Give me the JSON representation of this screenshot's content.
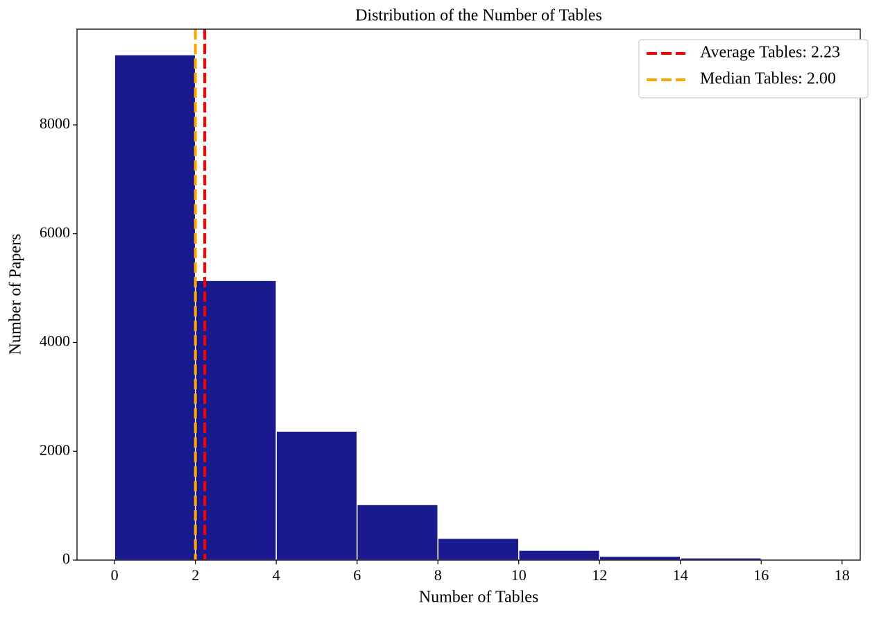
{
  "chart_data": {
    "type": "histogram",
    "title": "Distribution of the Number of Tables",
    "x_label": "Number of Tables",
    "y_label": "Number of Papers",
    "bins": [
      0,
      2,
      4,
      6,
      8,
      10,
      12,
      14,
      16,
      18
    ],
    "counts": [
      9290,
      5140,
      2370,
      1020,
      400,
      180,
      70,
      40,
      15
    ],
    "color": "#1a1a8f",
    "edge_color": "#ffffff",
    "xlim": [
      -0.93,
      18.45
    ],
    "ylim": [
      0,
      9760
    ],
    "xticks": [
      0,
      2,
      4,
      6,
      8,
      10,
      12,
      14,
      16,
      18
    ],
    "yticks": [
      0,
      2000,
      4000,
      6000,
      8000
    ],
    "vlines": [
      {
        "name": "Average Tables: 2.23",
        "value": 2.23,
        "color": "#ff0000"
      },
      {
        "name": "Median Tables: 2.00",
        "value": 2.0,
        "color": "#ffa500"
      }
    ],
    "legend": "upper right",
    "grid": false
  }
}
